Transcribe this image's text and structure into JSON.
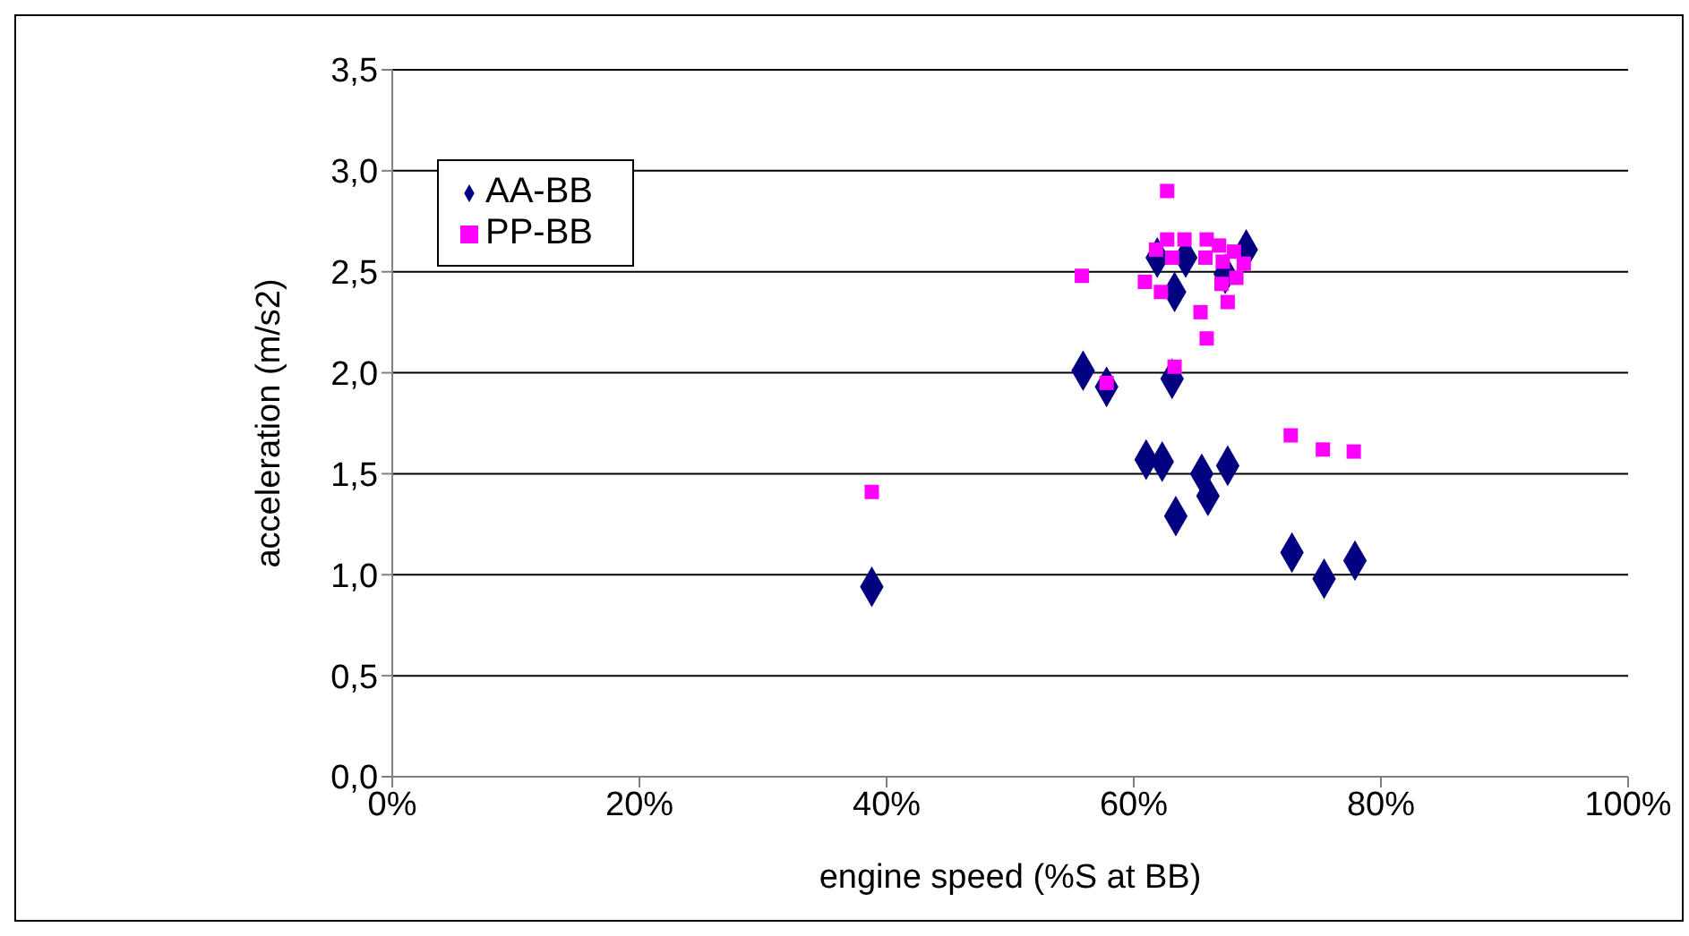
{
  "chart_data": {
    "type": "scatter",
    "xlabel": "engine speed (%S at BB)",
    "ylabel": "acceleration (m/s2)",
    "xlim": [
      0,
      100
    ],
    "xticks": [
      {
        "value": 0,
        "label": "0%"
      },
      {
        "value": 20,
        "label": "20%"
      },
      {
        "value": 40,
        "label": "40%"
      },
      {
        "value": 60,
        "label": "60%"
      },
      {
        "value": 80,
        "label": "80%"
      },
      {
        "value": 100,
        "label": "100%"
      }
    ],
    "ylim": [
      0,
      3.5
    ],
    "yticks": [
      {
        "value": 0,
        "label": "0,0"
      },
      {
        "value": 0.5,
        "label": "0,5"
      },
      {
        "value": 1,
        "label": "1,0"
      },
      {
        "value": 1.5,
        "label": "1,5"
      },
      {
        "value": 2,
        "label": "2,0"
      },
      {
        "value": 2.5,
        "label": "2,5"
      },
      {
        "value": 3,
        "label": "3,0"
      },
      {
        "value": 3.5,
        "label": "3,5"
      }
    ],
    "grid": "y",
    "legend": "top left",
    "series": [
      {
        "name": "AA-BB",
        "color": "#000080",
        "marker": "diamond",
        "x": [
          38.8,
          55.9,
          57.8,
          63.1,
          63.3,
          61.0,
          62.3,
          65.5,
          66.0,
          67.6,
          63.4,
          72.8,
          75.4,
          77.9,
          61.9,
          64.2,
          69.1,
          67.4
        ],
        "values": [
          0.94,
          2.01,
          1.93,
          1.97,
          2.4,
          1.57,
          1.56,
          1.5,
          1.39,
          1.54,
          1.29,
          1.11,
          0.98,
          1.07,
          2.57,
          2.57,
          2.61,
          2.49
        ]
      },
      {
        "name": "PP-BB",
        "color": "#ff00ff",
        "marker": "square",
        "x": [
          62.7,
          61.8,
          62.7,
          64.1,
          63.1,
          65.9,
          65.8,
          66.9,
          68.1,
          67.2,
          68.9,
          68.3,
          67.1,
          67.6,
          65.4,
          65.9,
          63.3,
          57.8,
          55.8,
          60.9,
          62.2,
          72.7,
          75.3,
          77.8,
          38.8
        ],
        "values": [
          2.9,
          2.61,
          2.66,
          2.66,
          2.57,
          2.66,
          2.57,
          2.63,
          2.6,
          2.55,
          2.54,
          2.47,
          2.44,
          2.35,
          2.3,
          2.17,
          2.03,
          1.95,
          2.48,
          2.45,
          2.4,
          1.69,
          1.62,
          1.61,
          1.41
        ]
      }
    ]
  }
}
